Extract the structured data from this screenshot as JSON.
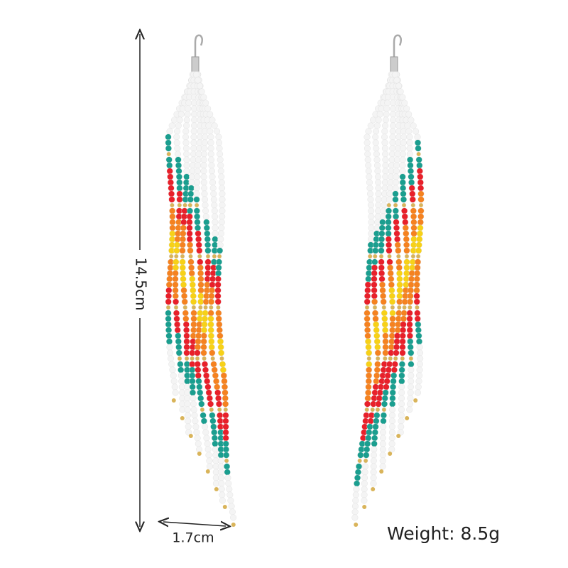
{
  "annotations": {
    "length": "14.5cm",
    "width": "1.7cm",
    "weight": "Weight: 8.5g"
  }
}
